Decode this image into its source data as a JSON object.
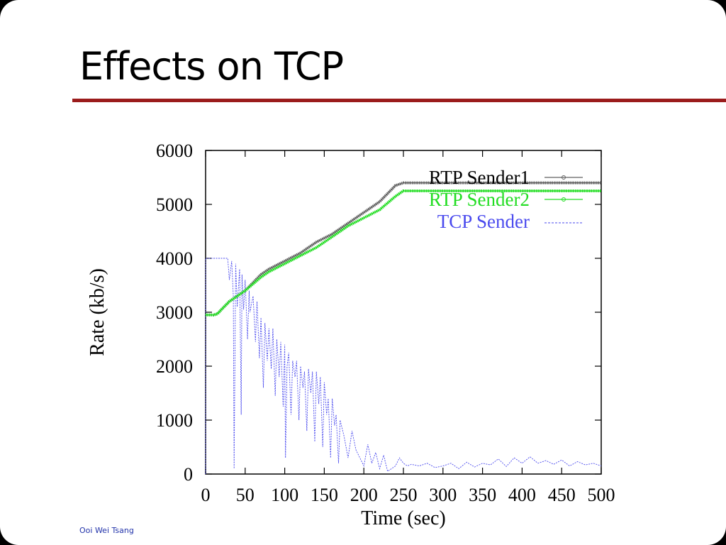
{
  "slide": {
    "title": "Effects on TCP",
    "footer": "Ooi Wei Tsang",
    "rule_color": "#9b1c1c"
  },
  "chart_data": {
    "type": "line",
    "xlabel": "Time (sec)",
    "ylabel": "Rate (kb/s)",
    "xlim": [
      0,
      500
    ],
    "ylim": [
      0,
      6000
    ],
    "xticks": [
      0,
      50,
      100,
      150,
      200,
      250,
      300,
      350,
      400,
      450,
      500
    ],
    "yticks": [
      0,
      1000,
      2000,
      3000,
      4000,
      5000,
      6000
    ],
    "grid": false,
    "legend_position": "top-right",
    "series": [
      {
        "name": "RTP Sender1",
        "color": "#606060",
        "style": "points",
        "x": [
          0,
          2,
          10,
          15,
          20,
          30,
          50,
          70,
          80,
          100,
          120,
          140,
          160,
          180,
          200,
          220,
          240,
          250,
          300,
          350,
          400,
          450,
          500
        ],
        "y": [
          2950,
          2950,
          2950,
          2970,
          3050,
          3200,
          3400,
          3700,
          3800,
          3950,
          4100,
          4300,
          4450,
          4650,
          4850,
          5050,
          5350,
          5400,
          5400,
          5400,
          5400,
          5400,
          5400
        ]
      },
      {
        "name": "RTP Sender2",
        "color": "#22dd22",
        "style": "points",
        "x": [
          0,
          2,
          10,
          15,
          20,
          30,
          50,
          70,
          80,
          100,
          120,
          140,
          160,
          180,
          200,
          220,
          240,
          250,
          300,
          350,
          400,
          450,
          500
        ],
        "y": [
          2950,
          2950,
          2950,
          2970,
          3050,
          3200,
          3400,
          3650,
          3750,
          3900,
          4050,
          4200,
          4400,
          4600,
          4750,
          4900,
          5150,
          5250,
          5250,
          5250,
          5250,
          5250,
          5250
        ]
      },
      {
        "name": "TCP Sender",
        "color": "#4a4aee",
        "style": "dashed",
        "x": [
          0,
          0,
          28,
          30,
          33,
          35,
          36,
          38,
          40,
          43,
          45,
          46,
          48,
          50,
          53,
          55,
          56,
          60,
          63,
          65,
          68,
          70,
          73,
          75,
          78,
          80,
          83,
          85,
          88,
          90,
          93,
          95,
          98,
          100,
          101,
          103,
          105,
          108,
          110,
          113,
          115,
          118,
          120,
          123,
          125,
          128,
          130,
          133,
          135,
          138,
          140,
          143,
          145,
          148,
          150,
          153,
          155,
          158,
          160,
          163,
          165,
          168,
          170,
          175,
          180,
          185,
          190,
          195,
          200,
          205,
          210,
          215,
          220,
          225,
          230,
          240,
          245,
          250,
          255,
          260,
          270,
          280,
          290,
          300,
          310,
          320,
          330,
          340,
          350,
          360,
          370,
          380,
          390,
          400,
          410,
          420,
          430,
          440,
          450,
          460,
          470,
          480,
          490,
          500
        ],
        "y": [
          0,
          4000,
          4000,
          3600,
          3950,
          3300,
          100,
          3900,
          3100,
          3800,
          1100,
          3700,
          3050,
          3600,
          2500,
          3400,
          3000,
          3300,
          2450,
          3200,
          2150,
          2900,
          1600,
          2800,
          2100,
          2700,
          1950,
          2700,
          1450,
          2500,
          1800,
          2450,
          1250,
          2400,
          300,
          2000,
          2250,
          1100,
          2100,
          1800,
          2100,
          1000,
          2000,
          1600,
          1900,
          800,
          1950,
          1500,
          1900,
          600,
          1900,
          1300,
          1800,
          500,
          1700,
          1100,
          1400,
          300,
          1400,
          900,
          1100,
          200,
          1000,
          700,
          300,
          800,
          450,
          300,
          150,
          550,
          200,
          400,
          100,
          350,
          50,
          150,
          300,
          200,
          150,
          180,
          150,
          200,
          120,
          150,
          200,
          100,
          220,
          130,
          200,
          170,
          280,
          140,
          300,
          200,
          320,
          200,
          250,
          180,
          260,
          150,
          230,
          170,
          200,
          150
        ]
      }
    ]
  }
}
